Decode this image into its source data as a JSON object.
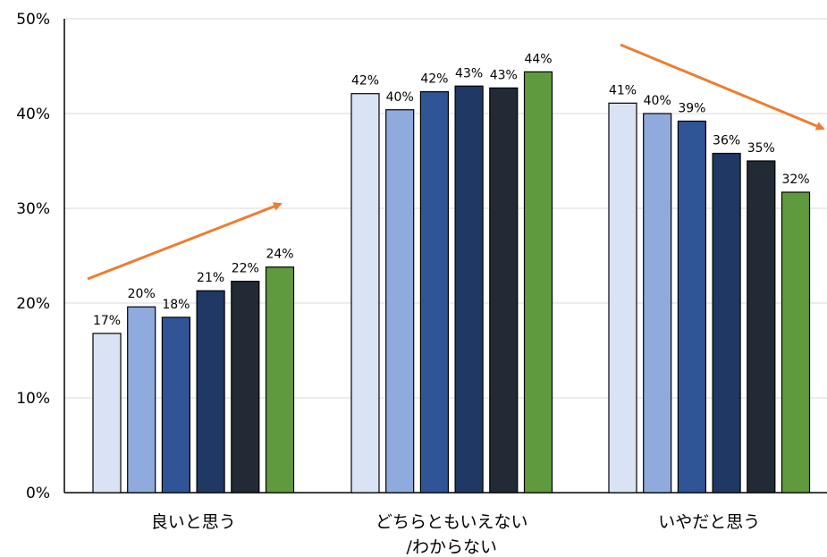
{
  "chart_data": {
    "type": "bar",
    "title": "",
    "xlabel": "",
    "ylabel": "",
    "ylim": [
      0,
      50
    ],
    "yticks": [
      0,
      10,
      20,
      30,
      40,
      50
    ],
    "y_tick_suffix": "%",
    "grid": true,
    "legend": "none",
    "categories": [
      [
        "良いと思う"
      ],
      [
        "どちらともいえない",
        "/わからない"
      ],
      [
        "いやだと思う"
      ]
    ],
    "series": [
      {
        "color": "#dae3f3",
        "values": [
          16.8,
          42.1,
          41.1
        ],
        "labels": [
          "17%",
          "42%",
          "41%"
        ]
      },
      {
        "color": "#8faadc",
        "values": [
          19.6,
          40.4,
          40.0
        ],
        "labels": [
          "20%",
          "40%",
          "40%"
        ]
      },
      {
        "color": "#2f5597",
        "values": [
          18.5,
          42.3,
          39.2
        ],
        "labels": [
          "18%",
          "42%",
          "39%"
        ]
      },
      {
        "color": "#1f3864",
        "values": [
          21.3,
          42.9,
          35.8
        ],
        "labels": [
          "21%",
          "43%",
          "36%"
        ]
      },
      {
        "color": "#222a35",
        "values": [
          22.3,
          42.7,
          35.0
        ],
        "labels": [
          "22%",
          "43%",
          "35%"
        ]
      },
      {
        "color": "#5f9b3e",
        "values": [
          23.8,
          44.4,
          31.7
        ],
        "labels": [
          "24%",
          "44%",
          "32%"
        ]
      }
    ],
    "annotations": [
      {
        "type": "arrow",
        "direction": "up",
        "category": 0,
        "color": "#ed7d31"
      },
      {
        "type": "arrow",
        "direction": "down",
        "category": 2,
        "color": "#ed7d31"
      }
    ]
  }
}
